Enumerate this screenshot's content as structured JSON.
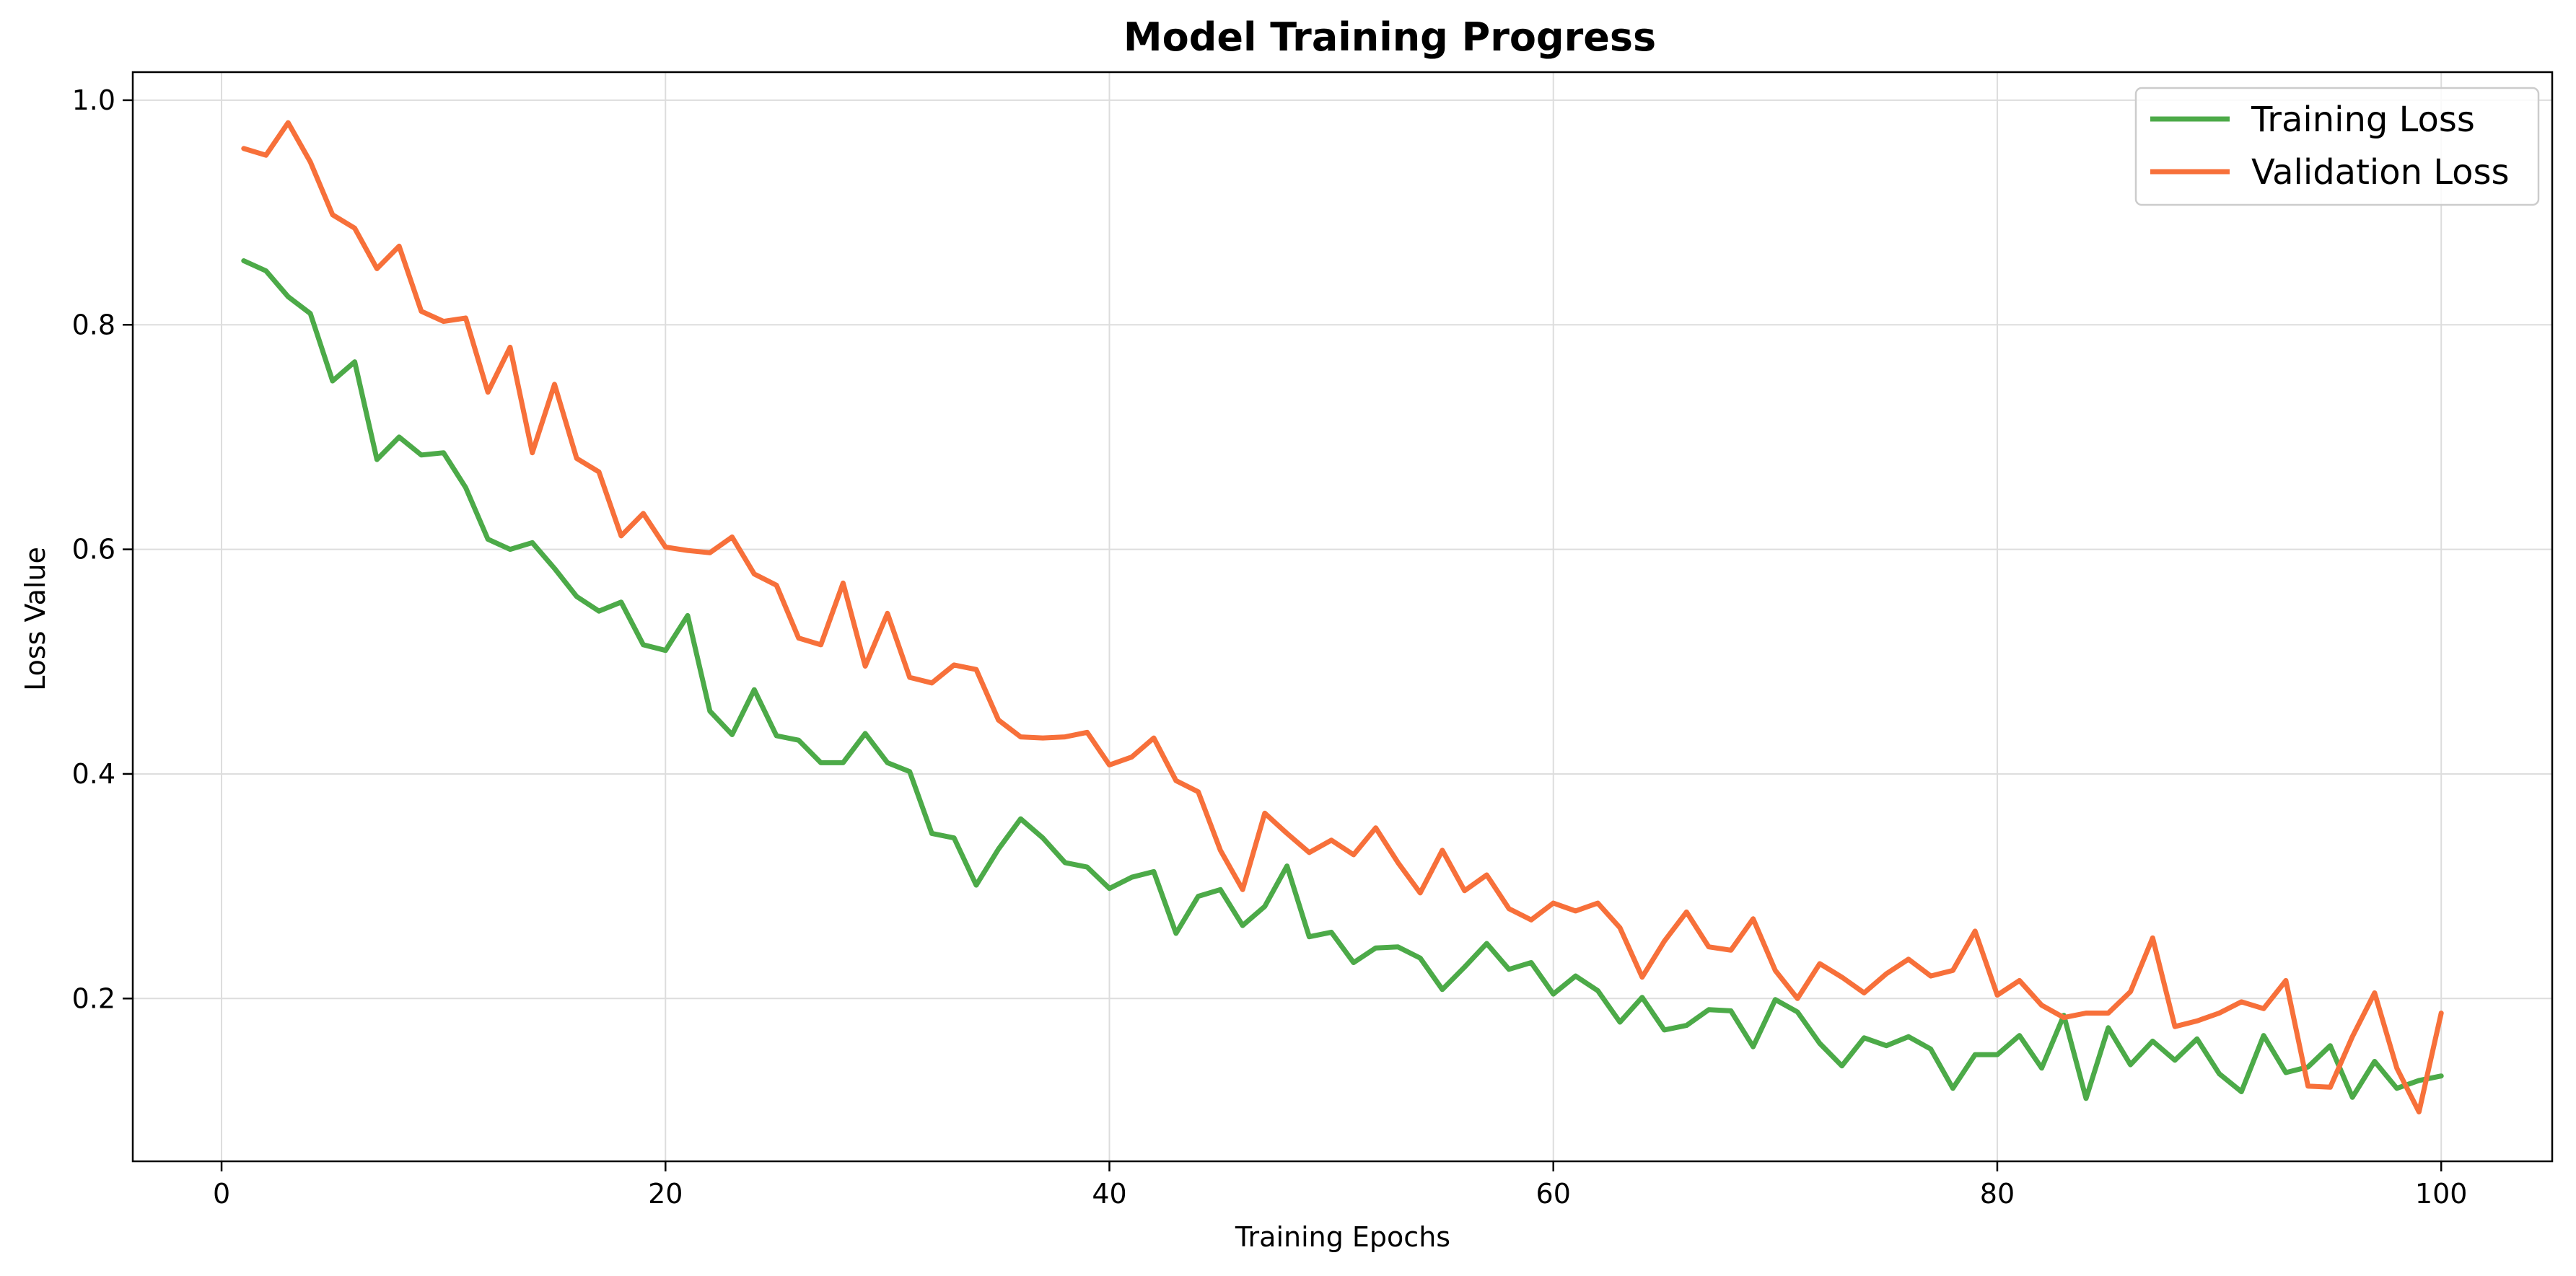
{
  "chart_data": {
    "type": "line",
    "title": "Model Training Progress",
    "xlabel": "Training Epochs",
    "ylabel": "Loss Value",
    "xlim": [
      -4,
      105
    ],
    "ylim": [
      0.055,
      1.025
    ],
    "xticks": [
      0,
      20,
      40,
      60,
      80,
      100
    ],
    "yticks": [
      0.2,
      0.4,
      0.6,
      0.8,
      1.0
    ],
    "xtick_labels": [
      "0",
      "20",
      "40",
      "60",
      "80",
      "100"
    ],
    "ytick_labels": [
      "0.2",
      "0.4",
      "0.6",
      "0.8",
      "1.0"
    ],
    "grid": true,
    "legend_position": "top-right",
    "x": [
      1,
      2,
      3,
      4,
      5,
      6,
      7,
      8,
      9,
      10,
      11,
      12,
      13,
      14,
      15,
      16,
      17,
      18,
      19,
      20,
      21,
      22,
      23,
      24,
      25,
      26,
      27,
      28,
      29,
      30,
      31,
      32,
      33,
      34,
      35,
      36,
      37,
      38,
      39,
      40,
      41,
      42,
      43,
      44,
      45,
      46,
      47,
      48,
      49,
      50,
      51,
      52,
      53,
      54,
      55,
      56,
      57,
      58,
      59,
      60,
      61,
      62,
      63,
      64,
      65,
      66,
      67,
      68,
      69,
      70,
      71,
      72,
      73,
      74,
      75,
      76,
      77,
      78,
      79,
      80,
      81,
      82,
      83,
      84,
      85,
      86,
      87,
      88,
      89,
      90,
      91,
      92,
      93,
      94,
      95,
      96,
      97,
      98,
      99,
      100
    ],
    "series": [
      {
        "name": "Training Loss",
        "color": "#4caa48",
        "values": [
          0.857,
          0.848,
          0.825,
          0.81,
          0.75,
          0.767,
          0.68,
          0.7,
          0.684,
          0.686,
          0.655,
          0.609,
          0.6,
          0.606,
          0.583,
          0.558,
          0.545,
          0.553,
          0.515,
          0.51,
          0.541,
          0.456,
          0.435,
          0.475,
          0.434,
          0.43,
          0.41,
          0.41,
          0.436,
          0.41,
          0.402,
          0.347,
          0.343,
          0.301,
          0.333,
          0.36,
          0.343,
          0.321,
          0.317,
          0.298,
          0.308,
          0.313,
          0.258,
          0.291,
          0.297,
          0.265,
          0.282,
          0.318,
          0.255,
          0.259,
          0.232,
          0.245,
          0.246,
          0.236,
          0.208,
          0.228,
          0.249,
          0.226,
          0.232,
          0.204,
          0.22,
          0.207,
          0.179,
          0.201,
          0.172,
          0.176,
          0.19,
          0.189,
          0.157,
          0.199,
          0.188,
          0.16,
          0.14,
          0.165,
          0.158,
          0.166,
          0.155,
          0.12,
          0.15,
          0.15,
          0.167,
          0.138,
          0.185,
          0.111,
          0.174,
          0.141,
          0.162,
          0.145,
          0.164,
          0.133,
          0.117,
          0.167,
          0.134,
          0.139,
          0.158,
          0.112,
          0.144,
          0.12,
          0.127,
          0.131
        ]
      },
      {
        "name": "Validation Loss",
        "color": "#f7703a",
        "values": [
          0.957,
          0.951,
          0.98,
          0.945,
          0.898,
          0.886,
          0.85,
          0.87,
          0.812,
          0.803,
          0.806,
          0.74,
          0.78,
          0.686,
          0.747,
          0.681,
          0.669,
          0.612,
          0.632,
          0.602,
          0.599,
          0.597,
          0.611,
          0.578,
          0.568,
          0.521,
          0.515,
          0.57,
          0.496,
          0.543,
          0.486,
          0.481,
          0.497,
          0.493,
          0.448,
          0.433,
          0.432,
          0.433,
          0.437,
          0.408,
          0.415,
          0.432,
          0.394,
          0.384,
          0.332,
          0.297,
          0.365,
          0.347,
          0.33,
          0.341,
          0.328,
          0.352,
          0.321,
          0.294,
          0.332,
          0.296,
          0.31,
          0.28,
          0.27,
          0.285,
          0.278,
          0.285,
          0.263,
          0.219,
          0.251,
          0.277,
          0.246,
          0.243,
          0.271,
          0.225,
          0.2,
          0.231,
          0.219,
          0.205,
          0.222,
          0.235,
          0.22,
          0.225,
          0.26,
          0.203,
          0.216,
          0.194,
          0.183,
          0.187,
          0.187,
          0.206,
          0.254,
          0.175,
          0.18,
          0.187,
          0.197,
          0.191,
          0.216,
          0.122,
          0.121,
          0.166,
          0.205,
          0.138,
          0.099,
          0.187
        ]
      }
    ]
  }
}
